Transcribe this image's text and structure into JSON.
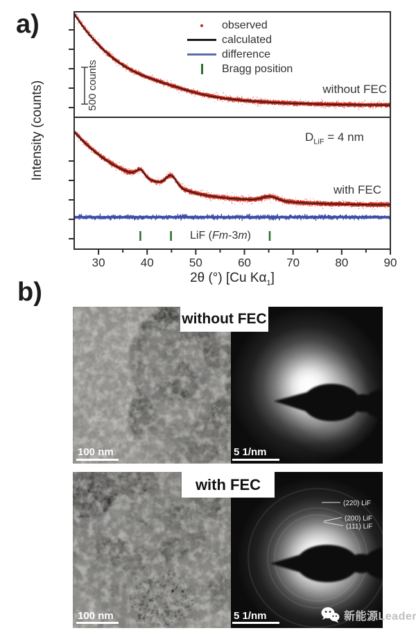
{
  "figure": {
    "panel_a_label": "a)",
    "panel_b_label": "b)",
    "xrd": {
      "y_axis_title": "Intensity (counts)",
      "x_axis_title": {
        "pre": "2θ (°) [Cu Kα",
        "sub": "1",
        "post": "]"
      },
      "x_ticks": [
        30,
        40,
        50,
        60,
        70,
        80,
        90
      ],
      "x_range": [
        25,
        90
      ],
      "legend": [
        {
          "label": "observed",
          "marker": "dot",
          "color": "#c0261b"
        },
        {
          "label": "calculated",
          "marker": "line",
          "color": "#1a1a1a"
        },
        {
          "label": "difference",
          "marker": "line",
          "color": "#5c6ca8"
        },
        {
          "label": "Bragg position",
          "marker": "tick",
          "color": "#2e7031"
        }
      ],
      "scale_bar_label": "500 counts",
      "top_panel": {
        "sample_label": "without FEC"
      },
      "bottom_panel": {
        "sample_label": "with FEC",
        "annotation": {
          "symbol": "D",
          "subscript": "LiF",
          "rest": " = 4 nm"
        },
        "phase_label": {
          "pre": "LiF (",
          "italic1": "Fm",
          "mid": "-3",
          "italic2": "m",
          "post": ")"
        },
        "bragg_positions_deg": [
          38.6,
          44.9,
          65.2
        ]
      }
    },
    "chart_data": {
      "type": "line",
      "xlabel": "2θ (°) [Cu Kα1]",
      "ylabel": "Intensity (counts)",
      "x_range_deg": [
        25,
        90
      ],
      "panels": [
        {
          "sample": "without FEC",
          "series": [
            "observed",
            "calculated"
          ],
          "description": "featureless amorphous decay, no Bragg peaks",
          "scale_bar": "500 counts"
        },
        {
          "sample": "with FEC",
          "series": [
            "observed",
            "calculated",
            "difference"
          ],
          "bragg_positions_deg": [
            38.6,
            44.9,
            65.2
          ],
          "phase": "LiF (Fm-3m)",
          "crystallite_size": "D_LiF = 4 nm"
        }
      ]
    },
    "tem": {
      "row_labels": {
        "top": "without FEC",
        "bottom": "with FEC"
      },
      "tem_scale_label": "100 nm",
      "saed_scale_label": "5 1/nm",
      "ring_labels": [
        "(220) LiF",
        "(200) LiF",
        "(111) LiF"
      ]
    },
    "watermark": {
      "text": "新能源Leader",
      "icon": "wechat"
    }
  }
}
